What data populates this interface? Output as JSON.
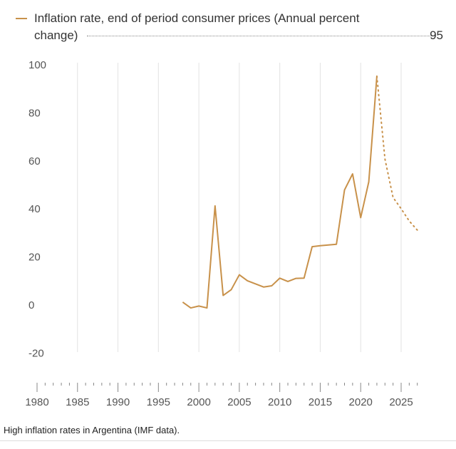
{
  "chart_data": {
    "type": "line",
    "legend": "Inflation rate, end of period consumer prices (Annual percent change)",
    "legend_value": "95",
    "series": [
      {
        "name": "Inflation rate (actual)",
        "style": "solid",
        "x": [
          1998,
          1999,
          2000,
          2001,
          2002,
          2003,
          2004,
          2005,
          2006,
          2007,
          2008,
          2009,
          2010,
          2011,
          2012,
          2013,
          2014,
          2015,
          2016,
          2017,
          2018,
          2019,
          2020,
          2021,
          2022
        ],
        "y": [
          0.9,
          -1.5,
          -0.7,
          -1.5,
          41,
          3.7,
          6.1,
          12.3,
          9.8,
          8.5,
          7.2,
          7.7,
          10.9,
          9.5,
          10.8,
          10.9,
          24,
          24.4,
          24.7,
          25,
          47.6,
          54.3,
          36.1,
          51,
          95
        ]
      },
      {
        "name": "Inflation rate (projection)",
        "style": "dotted",
        "x": [
          2022,
          2023,
          2024,
          2025,
          2026,
          2027
        ],
        "y": [
          95,
          60.5,
          44.5,
          39.8,
          34.7,
          30.9
        ]
      }
    ],
    "color": "#c8914a",
    "xlim": [
      1980,
      2027
    ],
    "ylim": [
      -20,
      100
    ],
    "yticks": [
      100,
      80,
      60,
      40,
      20,
      0,
      -20
    ],
    "xticks": [
      1980,
      1985,
      1990,
      1995,
      2000,
      2005,
      2010,
      2015,
      2020,
      2025
    ],
    "grid": "vertical",
    "legend_position": "top-left"
  },
  "caption": "High inflation rates in Argentina (IMF data)."
}
